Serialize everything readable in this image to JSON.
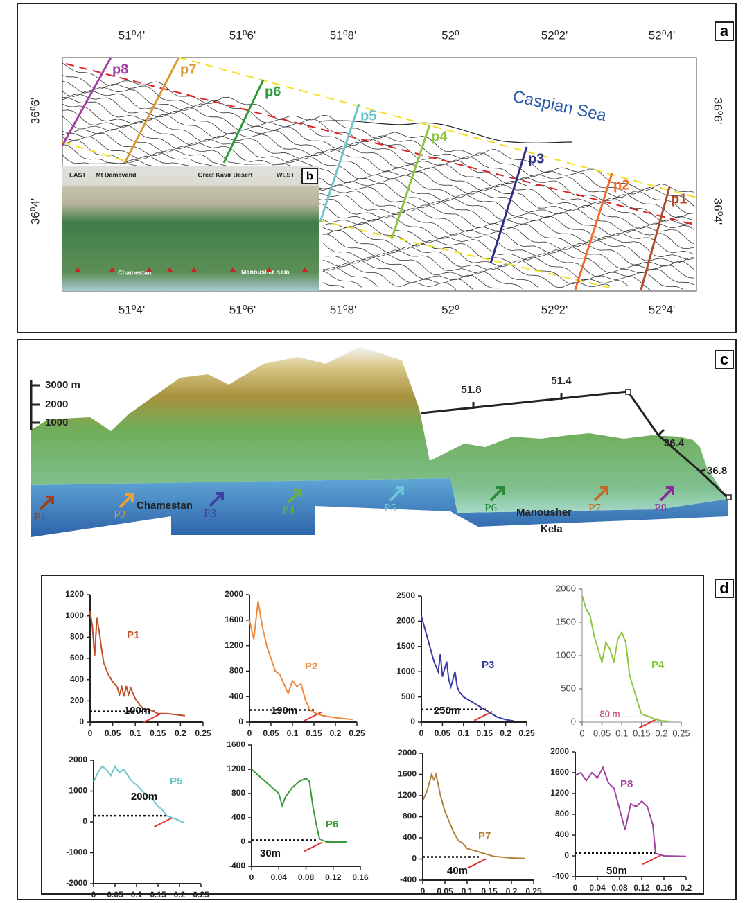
{
  "panel_labels": [
    "a",
    "b",
    "c",
    "d"
  ],
  "map": {
    "top_labels": [
      "51⁰4'",
      "51⁰6'",
      "51⁰8'",
      "52⁰",
      "52⁰2'",
      "52⁰4'"
    ],
    "bottom_labels": [
      "51⁰4'",
      "51⁰6'",
      "51⁰8'",
      "52⁰",
      "52⁰2'",
      "52⁰4'"
    ],
    "left_labels": [
      "36⁰6'",
      "36⁰4'"
    ],
    "right_labels": [
      "36⁰6'",
      "36⁰4'"
    ],
    "profiles": [
      "p8",
      "p7",
      "p6",
      "p5",
      "p4",
      "p3",
      "p2",
      "p1"
    ],
    "sea": "Caspian Sea",
    "inset": {
      "east": "EAST",
      "peak": "Mt Damavand",
      "desert": "Great Kavir Desert",
      "west": "WEST",
      "town1": "Chamestan",
      "town2": "Manousher Kela"
    }
  },
  "relief": {
    "scale": [
      "3000 m",
      "2000",
      "1000"
    ],
    "coords": [
      "51.8",
      "51.4",
      "36.4",
      "36.8"
    ],
    "profiles": [
      "P1",
      "P2",
      "P3",
      "P4",
      "P5",
      "P6",
      "P7",
      "P8"
    ],
    "towns": [
      "Chamestan",
      "Manousher",
      "Kela"
    ]
  },
  "chart_data": [
    {
      "type": "line",
      "x": [
        0,
        0.005,
        0.01,
        0.015,
        0.02,
        0.025,
        0.03,
        0.04,
        0.05,
        0.06,
        0.065,
        0.07,
        0.075,
        0.08,
        0.085,
        0.09,
        0.1,
        0.11,
        0.12,
        0.13,
        0.14,
        0.15,
        0.17,
        0.19,
        0.21
      ],
      "series": [
        {
          "name": "P1",
          "color": "#c0502a",
          "values": [
            1040,
            900,
            620,
            980,
            860,
            700,
            560,
            450,
            380,
            330,
            260,
            330,
            240,
            340,
            260,
            320,
            220,
            160,
            120,
            120,
            100,
            80,
            80,
            70,
            60
          ]
        }
      ],
      "xlim": [
        0,
        0.25
      ],
      "xticks": [
        0,
        0.05,
        0.1,
        0.15,
        0.2,
        0.25
      ],
      "ylim": [
        0,
        1200
      ],
      "yticks": [
        0,
        200,
        400,
        600,
        800,
        1000,
        1200
      ],
      "annotation": "100m",
      "baseline": 100
    },
    {
      "type": "line",
      "x": [
        0,
        0.01,
        0.02,
        0.025,
        0.03,
        0.04,
        0.05,
        0.06,
        0.07,
        0.08,
        0.09,
        0.1,
        0.11,
        0.12,
        0.13,
        0.14,
        0.15,
        0.17,
        0.2,
        0.24
      ],
      "series": [
        {
          "name": "P2",
          "color": "#f08a3c",
          "values": [
            1600,
            1300,
            1900,
            1700,
            1500,
            1200,
            1000,
            800,
            750,
            600,
            450,
            650,
            560,
            600,
            350,
            200,
            150,
            100,
            70,
            40
          ]
        }
      ],
      "xlim": [
        0,
        0.25
      ],
      "xticks": [
        0,
        0.05,
        0.1,
        0.15,
        0.2,
        0.25
      ],
      "ylim": [
        0,
        2000
      ],
      "yticks": [
        0,
        400,
        800,
        1200,
        1600,
        2000
      ],
      "annotation": "190m",
      "baseline": 190
    },
    {
      "type": "line",
      "x": [
        0,
        0.01,
        0.02,
        0.03,
        0.04,
        0.045,
        0.05,
        0.06,
        0.065,
        0.07,
        0.08,
        0.085,
        0.09,
        0.1,
        0.12,
        0.14,
        0.16,
        0.18,
        0.2,
        0.22
      ],
      "series": [
        {
          "name": "P3",
          "color": "#3b3ba8",
          "values": [
            2100,
            1800,
            1500,
            1200,
            1000,
            1350,
            900,
            1200,
            850,
            700,
            1000,
            700,
            600,
            500,
            400,
            300,
            200,
            100,
            50,
            20
          ]
        }
      ],
      "xlim": [
        0,
        0.25
      ],
      "xticks": [
        0,
        0.05,
        0.1,
        0.15,
        0.2,
        0.25
      ],
      "ylim": [
        0,
        2500
      ],
      "yticks": [
        0,
        500,
        1000,
        1500,
        2000,
        2500
      ],
      "annotation": "250m",
      "baseline": 250
    },
    {
      "type": "line",
      "x": [
        0,
        0.01,
        0.02,
        0.03,
        0.04,
        0.05,
        0.06,
        0.07,
        0.08,
        0.09,
        0.1,
        0.11,
        0.12,
        0.13,
        0.14,
        0.15,
        0.17,
        0.18,
        0.2,
        0.22
      ],
      "series": [
        {
          "name": "P4",
          "color": "#8cc63f",
          "values": [
            1900,
            1700,
            1600,
            1300,
            1100,
            900,
            1200,
            1100,
            900,
            1250,
            1350,
            1200,
            700,
            500,
            300,
            120,
            80,
            50,
            20,
            10
          ]
        }
      ],
      "xlim": [
        0,
        0.25
      ],
      "xticks": [
        0,
        0.05,
        0.1,
        0.15,
        0.2,
        0.25
      ],
      "ylim": [
        0,
        2000
      ],
      "yticks": [
        0,
        500,
        1000,
        1500,
        2000
      ],
      "annotation": "80 m",
      "baseline": 80
    },
    {
      "type": "line",
      "x": [
        0,
        0.01,
        0.02,
        0.03,
        0.04,
        0.05,
        0.06,
        0.07,
        0.08,
        0.09,
        0.1,
        0.12,
        0.14,
        0.15,
        0.16,
        0.17,
        0.19,
        0.21
      ],
      "series": [
        {
          "name": "P5",
          "color": "#6cc5c8",
          "values": [
            1300,
            1600,
            1800,
            1700,
            1500,
            1800,
            1600,
            1700,
            1500,
            1300,
            1200,
            900,
            700,
            500,
            400,
            200,
            100,
            -20
          ]
        }
      ],
      "xlim": [
        0,
        0.25
      ],
      "xticks": [
        0,
        0.05,
        0.1,
        0.15,
        0.2,
        0.25
      ],
      "ylim": [
        -2000,
        2000
      ],
      "yticks": [
        -2000,
        -1000,
        0,
        1000,
        2000
      ],
      "annotation": "200m",
      "baseline": 200
    },
    {
      "type": "line",
      "x": [
        0,
        0.01,
        0.02,
        0.03,
        0.04,
        0.045,
        0.05,
        0.06,
        0.07,
        0.08,
        0.085,
        0.09,
        0.095,
        0.1,
        0.11,
        0.12,
        0.14
      ],
      "series": [
        {
          "name": "P6",
          "color": "#3a9a3a",
          "values": [
            1200,
            1100,
            1000,
            900,
            800,
            600,
            750,
            900,
            1000,
            1050,
            1000,
            600,
            300,
            50,
            0,
            0,
            0
          ]
        }
      ],
      "xlim": [
        0,
        0.16
      ],
      "xticks": [
        0,
        0.04,
        0.08,
        0.12,
        0.16
      ],
      "ylim": [
        -400,
        1600
      ],
      "yticks": [
        -400,
        0,
        400,
        800,
        1200,
        1600
      ],
      "annotation": "30m",
      "baseline": 30
    },
    {
      "type": "line",
      "x": [
        0,
        0.01,
        0.02,
        0.025,
        0.03,
        0.04,
        0.05,
        0.06,
        0.07,
        0.08,
        0.09,
        0.1,
        0.12,
        0.14,
        0.16,
        0.2,
        0.23
      ],
      "series": [
        {
          "name": "P7",
          "color": "#b0803a",
          "values": [
            1100,
            1300,
            1600,
            1500,
            1600,
            1200,
            900,
            700,
            500,
            350,
            300,
            200,
            150,
            100,
            50,
            20,
            10
          ]
        }
      ],
      "xlim": [
        0,
        0.25
      ],
      "xticks": [
        0,
        0.05,
        0.1,
        0.15,
        0.2,
        0.25
      ],
      "ylim": [
        -400,
        2000
      ],
      "yticks": [
        -400,
        0,
        400,
        800,
        1200,
        1600,
        2000
      ],
      "annotation": "40m",
      "baseline": 40
    },
    {
      "type": "line",
      "x": [
        0,
        0.01,
        0.02,
        0.03,
        0.04,
        0.05,
        0.06,
        0.07,
        0.08,
        0.09,
        0.1,
        0.11,
        0.12,
        0.13,
        0.14,
        0.145,
        0.16,
        0.2
      ],
      "series": [
        {
          "name": "P8",
          "color": "#a040a0",
          "values": [
            1550,
            1600,
            1450,
            1600,
            1500,
            1700,
            1400,
            1300,
            900,
            500,
            1000,
            950,
            1050,
            950,
            600,
            50,
            0,
            -10
          ]
        }
      ],
      "xlim": [
        0,
        0.2
      ],
      "xticks": [
        0,
        0.04,
        0.08,
        0.12,
        0.16,
        0.2
      ],
      "ylim": [
        -400,
        2000
      ],
      "yticks": [
        -400,
        0,
        400,
        800,
        1200,
        1600,
        2000
      ],
      "annotation": "50m",
      "baseline": 50
    }
  ]
}
